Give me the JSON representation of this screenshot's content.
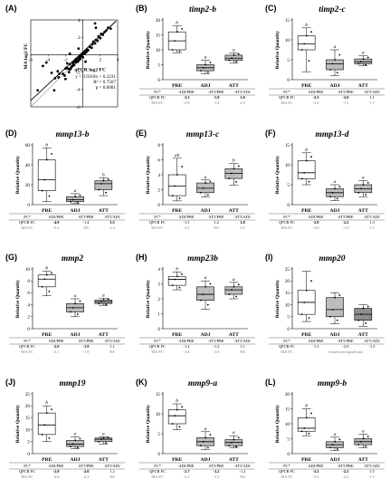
{
  "figure": {
    "panel_labels": [
      "(A)",
      "(B)",
      "(C)",
      "(D)",
      "(E)",
      "(F)",
      "(G)",
      "(H)",
      "(I)",
      "(J)",
      "(K)",
      "(L)"
    ]
  },
  "chart_data": [
    {
      "type": "scatter",
      "label": "(A)",
      "xlabel": "qPCR log2 FC",
      "ylabel": "MA log2 FC",
      "xlim": [
        -6,
        4
      ],
      "ylim": [
        -6,
        4
      ],
      "xticks": [
        "-6",
        "-4",
        "-2",
        "0",
        "2",
        "4"
      ],
      "yticks": [
        "-6",
        "-4",
        "-2",
        "0",
        "2",
        "4"
      ],
      "annotation": [
        "y = 0.9318x + 0.3231",
        "R² = 0.7567",
        "p < 0.0001"
      ],
      "fit": {
        "slope": 0.9318,
        "intercept": 0.3231
      },
      "points": [
        [
          -3.6,
          -2.1
        ],
        [
          -3.3,
          -4.1
        ],
        [
          -3.2,
          -2.7
        ],
        [
          -2.9,
          -1.9
        ],
        [
          -2.8,
          -2.6
        ],
        [
          -2.7,
          -2.2
        ],
        [
          -2.3,
          -2.2
        ],
        [
          -2.1,
          -2.4
        ],
        [
          -2.0,
          -2.8
        ],
        [
          -2.0,
          -1.6
        ],
        [
          -1.9,
          -1.5
        ],
        [
          -1.8,
          -1.0
        ],
        [
          -1.7,
          -1.6
        ],
        [
          -1.6,
          -2.0
        ],
        [
          -1.5,
          -1.1
        ],
        [
          -1.5,
          -1.7
        ],
        [
          -1.4,
          -1.6
        ],
        [
          -1.3,
          -1.4
        ],
        [
          -1.2,
          -1.3
        ],
        [
          -1.2,
          -0.9
        ],
        [
          -1.1,
          -1.1
        ],
        [
          -1.0,
          -0.8
        ],
        [
          -1.0,
          -1.2
        ],
        [
          -0.9,
          -0.7
        ],
        [
          -0.8,
          -0.9
        ],
        [
          -0.8,
          -0.5
        ],
        [
          -0.7,
          -0.6
        ],
        [
          -0.6,
          -0.8
        ],
        [
          -0.5,
          -0.4
        ],
        [
          -0.5,
          -0.7
        ],
        [
          -0.4,
          -0.3
        ],
        [
          -0.3,
          -0.5
        ],
        [
          -0.3,
          -0.1
        ],
        [
          -0.2,
          -0.2
        ],
        [
          -0.1,
          0.0
        ],
        [
          0.0,
          -0.3
        ],
        [
          0.0,
          0.1
        ],
        [
          0.1,
          0.2
        ],
        [
          0.2,
          0.1
        ],
        [
          0.3,
          0.4
        ],
        [
          0.4,
          0.3
        ],
        [
          0.5,
          0.6
        ],
        [
          0.6,
          0.5
        ],
        [
          0.8,
          0.9
        ],
        [
          1.0,
          0.8
        ],
        [
          1.1,
          1.2
        ],
        [
          1.2,
          1.5
        ],
        [
          1.4,
          1.3
        ],
        [
          1.5,
          1.7
        ],
        [
          1.7,
          1.6
        ],
        [
          1.8,
          2.1
        ],
        [
          2.0,
          1.9
        ],
        [
          2.1,
          2.4
        ],
        [
          2.3,
          2.3
        ],
        [
          2.5,
          2.6
        ],
        [
          2.7,
          2.8
        ],
        [
          2.9,
          3.1
        ],
        [
          3.2,
          3.0
        ],
        [
          -4.2,
          -0.9
        ],
        [
          -4.6,
          -1.3
        ],
        [
          -1.5,
          0.1
        ],
        [
          1.5,
          3.1
        ],
        [
          -5.2,
          -4.1
        ],
        [
          0.3,
          -0.8
        ],
        [
          -0.5,
          0.7
        ],
        [
          1.4,
          3.6
        ]
      ]
    },
    {
      "type": "box",
      "label": "(B)",
      "title": "timp2-b",
      "ylabel": "Relative Quantity",
      "ylim": [
        0,
        20
      ],
      "yticks": [
        "0",
        "5",
        "10",
        "15",
        "20"
      ],
      "categories": [
        "PRE",
        "ADJ",
        "ATT"
      ],
      "boxes": [
        {
          "min": 9,
          "q1": 10,
          "median": 13,
          "q3": 16,
          "max": 18
        },
        {
          "min": 2,
          "q1": 3,
          "median": 4,
          "q3": 5,
          "max": 6.5
        },
        {
          "min": 5.5,
          "q1": 6.5,
          "median": 7.2,
          "q3": 8.2,
          "max": 9
        }
      ],
      "fills": [
        "#ffffff",
        "#bdbdbd",
        "#bdbdbd"
      ],
      "sig": [
        "b",
        "a",
        "a"
      ],
      "table_header": [
        "FC*",
        "ADJ/PRE",
        "ATT/PRE",
        "ATT/ADJ"
      ],
      "qpcr": [
        "QPCR FC",
        "-3.3",
        "-1.9",
        "1.8"
      ],
      "ma": [
        "MA FC",
        "-2.8",
        "-1.4",
        "2.0"
      ],
      "bold": [
        1,
        2,
        3
      ]
    },
    {
      "type": "box",
      "label": "(C)",
      "title": "timp2-c",
      "ylabel": "Relative Quantity",
      "ylim": [
        0,
        15
      ],
      "yticks": [
        "0",
        "5",
        "10",
        "15"
      ],
      "categories": [
        "PRE",
        "ADJ",
        "ATT"
      ],
      "boxes": [
        {
          "min": 2,
          "q1": 7.5,
          "median": 9,
          "q3": 11,
          "max": 13
        },
        {
          "min": 1,
          "q1": 2.5,
          "median": 4,
          "q3": 5,
          "max": 7.5
        },
        {
          "min": 3.5,
          "q1": 4,
          "median": 4.5,
          "q3": 5.2,
          "max": 6
        }
      ],
      "fills": [
        "#ffffff",
        "#bdbdbd",
        "#bdbdbd"
      ],
      "sig": [
        "b",
        "a",
        "a"
      ],
      "table_header": [
        "FC*",
        "ADJ/PRE",
        "ATT/PRE",
        "ATT/ADJ"
      ],
      "qpcr": [
        "QPCR FC",
        "-3.3",
        "-2.0",
        "1.1"
      ],
      "ma": [
        "MA FC",
        "-2.4",
        "-1.5",
        "1.7"
      ],
      "bold": [
        1,
        2
      ]
    },
    {
      "type": "box",
      "label": "(D)",
      "title": "mmp13-b",
      "ylabel": "Relative Quantity",
      "ylim": [
        0,
        60
      ],
      "yticks": [
        "0",
        "20",
        "40",
        "60"
      ],
      "categories": [
        "PRE",
        "ADJ",
        "ATT"
      ],
      "boxes": [
        {
          "min": 3,
          "q1": 14,
          "median": 25,
          "q3": 45,
          "max": 57
        },
        {
          "min": 1,
          "q1": 3,
          "median": 5,
          "q3": 8,
          "max": 11
        },
        {
          "min": 9,
          "q1": 15,
          "median": 21,
          "q3": 24,
          "max": 27
        }
      ],
      "fills": [
        "#ffffff",
        "#bdbdbd",
        "#bdbdbd"
      ],
      "sig": [
        "b",
        "a",
        "b"
      ],
      "table_header": [
        "FC*",
        "ADJ/PRE",
        "ATT/PRE",
        "ATT/ADJ"
      ],
      "qpcr": [
        "QPCR FC",
        "-4.9",
        "-1.4",
        "3.5"
      ],
      "ma": [
        "MA FC",
        "-5.2",
        "NS",
        "3.3"
      ],
      "bold": [
        1,
        3
      ]
    },
    {
      "type": "box",
      "label": "(E)",
      "title": "mmp13-c",
      "ylabel": "Relative Quantity",
      "ylim": [
        0,
        8
      ],
      "yticks": [
        "0",
        "2",
        "4",
        "6",
        "8"
      ],
      "categories": [
        "PRE",
        "ADJ",
        "ATT"
      ],
      "boxes": [
        {
          "min": 0.5,
          "q1": 1.2,
          "median": 2.5,
          "q3": 4,
          "max": 6.2
        },
        {
          "min": 1,
          "q1": 1.6,
          "median": 2.2,
          "q3": 2.9,
          "max": 3.3
        },
        {
          "min": 2.6,
          "q1": 3.5,
          "median": 4.2,
          "q3": 4.8,
          "max": 5.5
        }
      ],
      "fills": [
        "#ffffff",
        "#bdbdbd",
        "#bdbdbd"
      ],
      "sig": [
        "ab",
        "a",
        "b"
      ],
      "table_header": [
        "FC*",
        "ADJ/PRE",
        "ATT/PRE",
        "ATT/ADJ"
      ],
      "qpcr": [
        "QPCR FC",
        "-1.5",
        "1.2",
        "1.8"
      ],
      "ma": [
        "MA FC",
        "-2.5",
        "NS",
        "2.9"
      ],
      "bold": [
        3
      ]
    },
    {
      "type": "box",
      "label": "(F)",
      "title": "mmp13-d",
      "ylabel": "Relative Quantity",
      "ylim": [
        0,
        15
      ],
      "yticks": [
        "0",
        "5",
        "10",
        "15"
      ],
      "categories": [
        "PRE",
        "ADJ",
        "ATT"
      ],
      "boxes": [
        {
          "min": 5,
          "q1": 6.5,
          "median": 8,
          "q3": 11,
          "max": 13
        },
        {
          "min": 1,
          "q1": 2,
          "median": 3,
          "q3": 4,
          "max": 5
        },
        {
          "min": 2,
          "q1": 3,
          "median": 4,
          "q3": 5,
          "max": 6
        }
      ],
      "fills": [
        "#ffffff",
        "#bdbdbd",
        "#bdbdbd"
      ],
      "sig": [
        "b",
        "a",
        "a"
      ],
      "table_header": [
        "FC*",
        "ADJ/PRE",
        "ATT/PRE",
        "ATT/ADJ"
      ],
      "qpcr": [
        "QPCR FC",
        "-2.8",
        "-2.2",
        "1.3"
      ],
      "ma": [
        "MA FC",
        "-3.6",
        "-1.9",
        "1.5"
      ],
      "bold": [
        1,
        2
      ]
    },
    {
      "type": "box",
      "label": "(G)",
      "title": "mmp2",
      "ylabel": "Relative Quantity",
      "ylim": [
        0,
        10
      ],
      "yticks": [
        "0",
        "2",
        "4",
        "6",
        "8",
        "10"
      ],
      "categories": [
        "PRE",
        "ADJ",
        "ATT"
      ],
      "boxes": [
        {
          "min": 5.5,
          "q1": 7,
          "median": 8.3,
          "q3": 9,
          "max": 9.6
        },
        {
          "min": 2,
          "q1": 2.8,
          "median": 3.5,
          "q3": 4.2,
          "max": 5
        },
        {
          "min": 3.9,
          "q1": 4.2,
          "median": 4.5,
          "q3": 4.8,
          "max": 5.1
        }
      ],
      "fills": [
        "#ffffff",
        "#bdbdbd",
        "#bdbdbd"
      ],
      "sig": [
        "b",
        "a",
        "a"
      ],
      "table_header": [
        "FC*",
        "ADJ/PRE",
        "ATT/PRE",
        "ATT/ADJ"
      ],
      "qpcr": [
        "QPCR FC",
        "-2.0",
        "-1.9",
        "1.1"
      ],
      "ma": [
        "MA FC",
        "-2.1",
        "-1.9",
        "NS"
      ],
      "bold": [
        1,
        2
      ]
    },
    {
      "type": "box",
      "label": "(H)",
      "title": "mmp23b",
      "ylabel": "Relative Quantity",
      "ylim": [
        0,
        4
      ],
      "yticks": [
        "0",
        "1",
        "2",
        "3",
        "4"
      ],
      "categories": [
        "PRE",
        "ADJ",
        "ATT"
      ],
      "boxes": [
        {
          "min": 2.6,
          "q1": 2.9,
          "median": 3.3,
          "q3": 3.5,
          "max": 3.8
        },
        {
          "min": 1.3,
          "q1": 1.9,
          "median": 2.3,
          "q3": 2.8,
          "max": 3.2
        },
        {
          "min": 2,
          "q1": 2.3,
          "median": 2.6,
          "q3": 2.8,
          "max": 3.1
        }
      ],
      "fills": [
        "#ffffff",
        "#bdbdbd",
        "#bdbdbd"
      ],
      "sig": [
        "b",
        "a",
        "a"
      ],
      "table_header": [
        "FC*",
        "ADJ/PRE",
        "ATT/PRE",
        "ATT/ADJ"
      ],
      "qpcr": [
        "QPCR FC",
        "-1.4",
        "-1.2",
        "1.1"
      ],
      "ma": [
        "MA FC",
        "-1.4",
        "-1.6",
        "NS"
      ],
      "bold": []
    },
    {
      "type": "box",
      "label": "(I)",
      "title": "mmp20",
      "ylabel": "Relative Quantity",
      "ylim": [
        0,
        25
      ],
      "yticks": [
        "0",
        "5",
        "10",
        "15",
        "20",
        "25"
      ],
      "categories": [
        "PRE",
        "ADJ",
        "ATT"
      ],
      "boxes": [
        {
          "min": 3,
          "q1": 6,
          "median": 11,
          "q3": 16,
          "max": 24
        },
        {
          "min": 2,
          "q1": 5,
          "median": 8,
          "q3": 13,
          "max": 15
        },
        {
          "min": 1,
          "q1": 3.5,
          "median": 6,
          "q3": 8.5,
          "max": 10
        }
      ],
      "fills": [
        "#ffffff",
        "#bdbdbd",
        "#8e8e8e"
      ],
      "sig": [
        "",
        "",
        ""
      ],
      "table_header": [
        "FC*",
        "ADJ/PRE",
        "ATT/PRE",
        "ATT/ADJ"
      ],
      "qpcr": [
        "QPCR FC",
        "-1.3",
        "-2.0",
        "-1.5"
      ],
      "ma": [
        "MA FC",
        "",
        "found non-significant",
        ""
      ],
      "bold": []
    },
    {
      "type": "box",
      "label": "(J)",
      "title": "mmp19",
      "ylabel": "Relative Quantity",
      "ylim": [
        0,
        25
      ],
      "yticks": [
        "0",
        "5",
        "10",
        "15",
        "20",
        "25"
      ],
      "categories": [
        "PRE",
        "ADJ",
        "ATT"
      ],
      "boxes": [
        {
          "min": 5,
          "q1": 8,
          "median": 12,
          "q3": 17,
          "max": 20
        },
        {
          "min": 2,
          "q1": 3,
          "median": 4,
          "q3": 5.5,
          "max": 7
        },
        {
          "min": 4,
          "q1": 5,
          "median": 6,
          "q3": 6.5,
          "max": 7
        }
      ],
      "fills": [
        "#ffffff",
        "#bdbdbd",
        "#bdbdbd"
      ],
      "sig": [
        "b",
        "a",
        "a"
      ],
      "table_header": [
        "FC*",
        "ADJ/PRE",
        "ATT/PRE",
        "ATT/ADJ"
      ],
      "qpcr": [
        "QPCR FC",
        "-2.9",
        "-2.0",
        "1.2"
      ],
      "ma": [
        "MA FC",
        "-2.6",
        "-2.2",
        "NS"
      ],
      "bold": [
        1,
        2
      ]
    },
    {
      "type": "box",
      "label": "(K)",
      "title": "mmp9-a",
      "ylabel": "Relative Quantity",
      "ylim": [
        0,
        15
      ],
      "yticks": [
        "0",
        "5",
        "10",
        "15"
      ],
      "categories": [
        "PRE",
        "ADJ",
        "ATT"
      ],
      "boxes": [
        {
          "min": 6,
          "q1": 7.5,
          "median": 9.5,
          "q3": 11,
          "max": 12.5
        },
        {
          "min": 1,
          "q1": 2,
          "median": 3,
          "q3": 4,
          "max": 5.5
        },
        {
          "min": 1.5,
          "q1": 2,
          "median": 2.8,
          "q3": 3.5,
          "max": 4.5
        }
      ],
      "fills": [
        "#ffffff",
        "#bdbdbd",
        "#bdbdbd"
      ],
      "sig": [
        "b",
        "a",
        "a"
      ],
      "table_header": [
        "FC*",
        "ADJ/PRE",
        "ATT/PRE",
        "ATT/ADJ"
      ],
      "qpcr": [
        "QPCR FC",
        "-2.7",
        "-3.2",
        "-1.2"
      ],
      "ma": [
        "MA FC",
        "-3.2",
        "-3.5",
        "NS"
      ],
      "bold": [
        1,
        2
      ]
    },
    {
      "type": "box",
      "label": "(L)",
      "title": "mmp9-b",
      "ylabel": "Relative Quantity",
      "ylim": [
        0,
        20
      ],
      "yticks": [
        "0",
        "5",
        "10",
        "15",
        "20"
      ],
      "categories": [
        "PRE",
        "ADJ",
        "ATT"
      ],
      "boxes": [
        {
          "min": 6,
          "q1": 7.5,
          "median": 8.5,
          "q3": 12,
          "max": 15
        },
        {
          "min": 1,
          "q1": 2,
          "median": 3,
          "q3": 4,
          "max": 5.5
        },
        {
          "min": 2,
          "q1": 3,
          "median": 4,
          "q3": 5,
          "max": 6.5
        }
      ],
      "fills": [
        "#ffffff",
        "#bdbdbd",
        "#bdbdbd"
      ],
      "sig": [
        "b",
        "a",
        "a"
      ],
      "table_header": [
        "FC*",
        "ADJ/PRE",
        "ATT/PRE",
        "ATT/ADJ"
      ],
      "qpcr": [
        "QPCR FC",
        "-3.2",
        "-2.2",
        "1.5"
      ],
      "ma": [
        "MA FC",
        "-3.2",
        "-2.2",
        "1.5"
      ],
      "bold": [
        1,
        2
      ]
    }
  ]
}
